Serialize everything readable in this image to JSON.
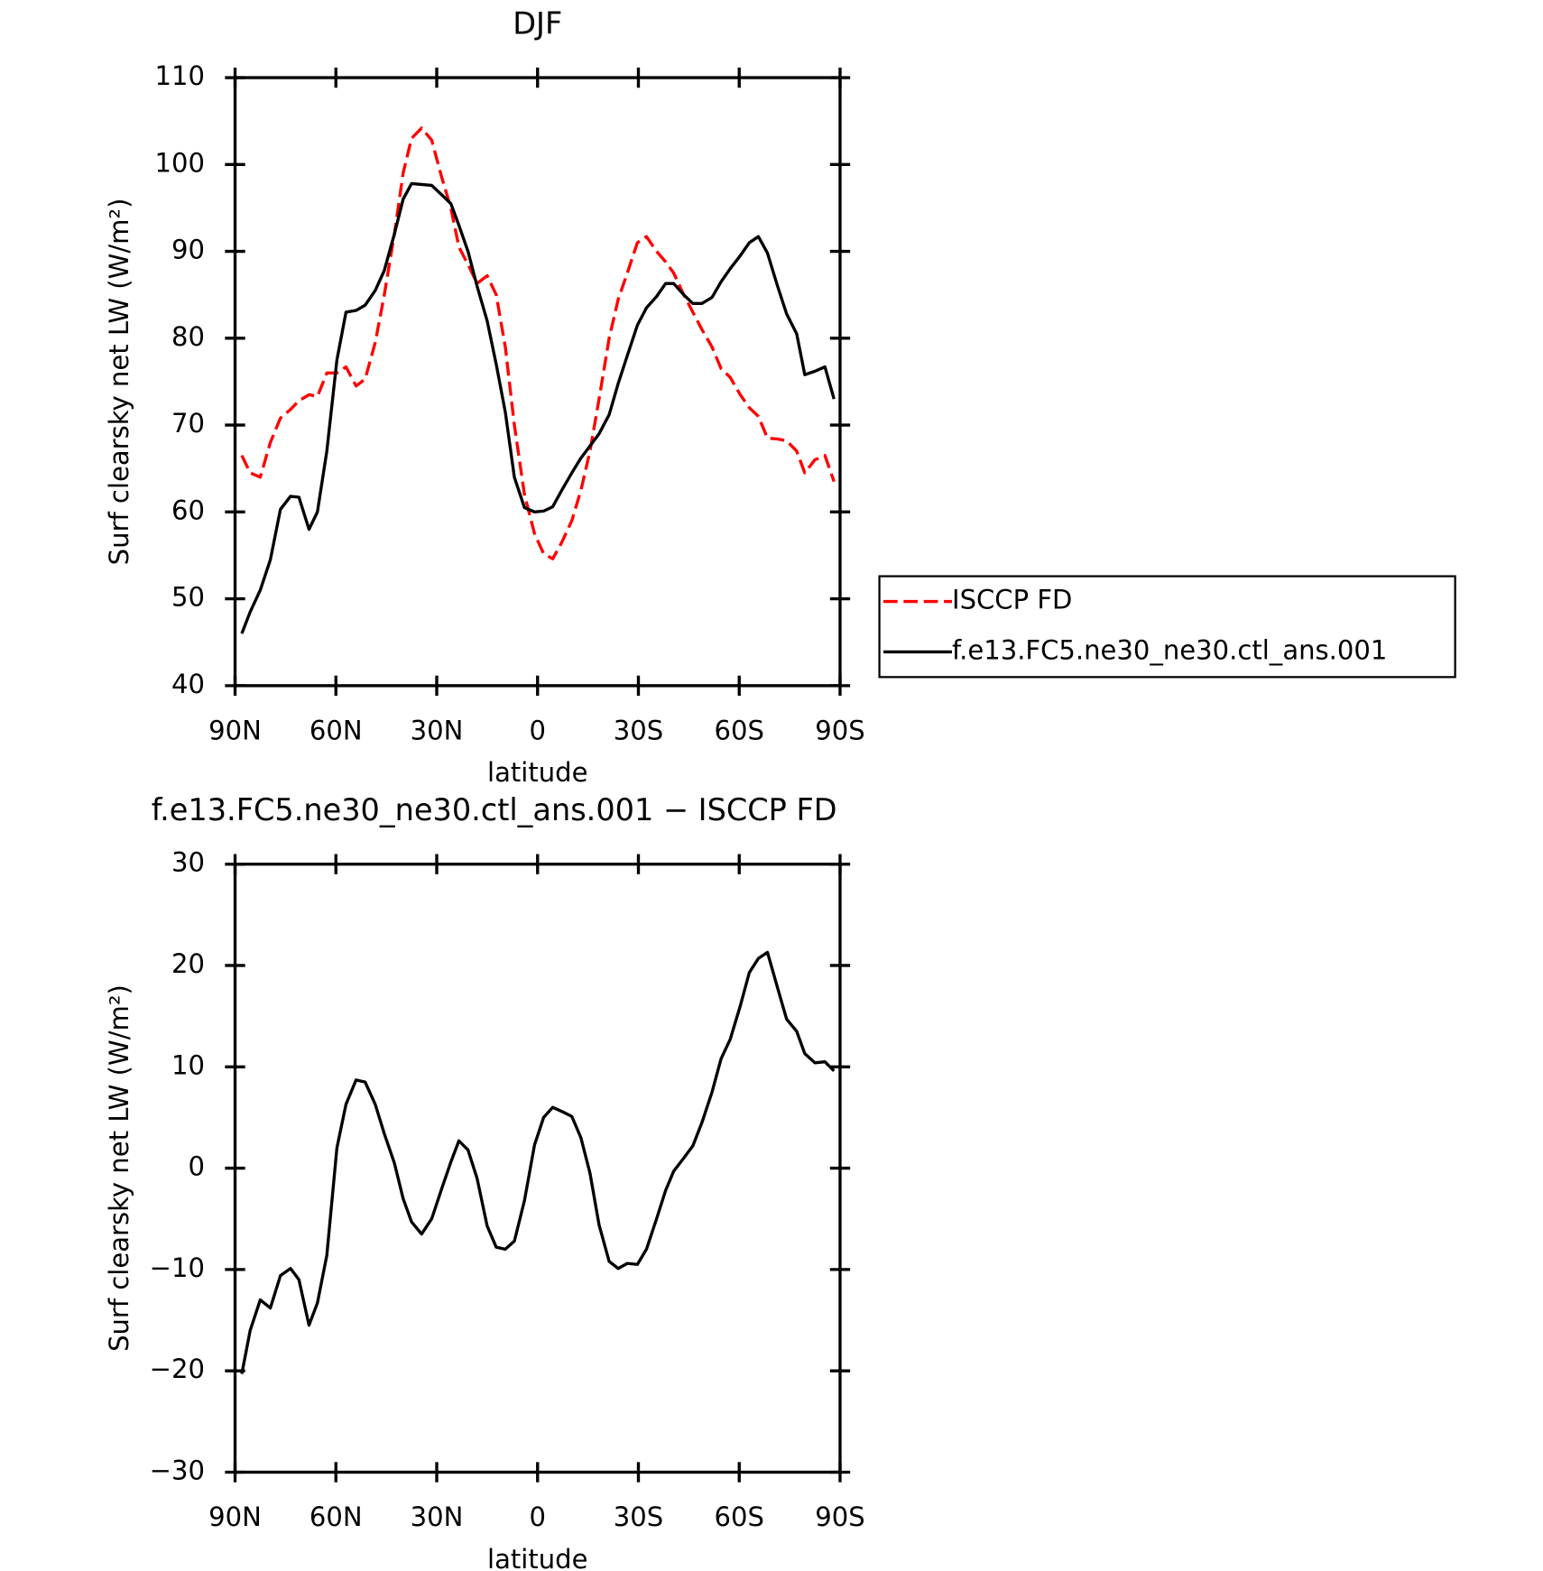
{
  "chart_data": [
    {
      "type": "line",
      "title": "DJF",
      "xlabel": "latitude",
      "ylabel": "Surf clearsky net LW (W/m²)",
      "x": [
        88,
        85.5,
        82.5,
        79.5,
        76.5,
        73.5,
        71,
        68,
        65.5,
        62.7,
        59.7,
        57,
        54,
        51.3,
        48.3,
        45.6,
        42.6,
        40,
        37.5,
        34.5,
        31.5,
        28.5,
        25.8,
        23.4,
        20.7,
        18,
        15,
        12.3,
        9.6,
        6.9,
        3.9,
        0.9,
        -1.8,
        -4.5,
        -7.2,
        -10.2,
        -12.9,
        -15.6,
        -18.3,
        -21.3,
        -24,
        -26.7,
        -29.7,
        -32.4,
        -35.4,
        -38.1,
        -40.5,
        -43.5,
        -46.2,
        -48.9,
        -51.9,
        -54.6,
        -57.3,
        -60.3,
        -63,
        -65.7,
        -68.4,
        -71.4,
        -74.1,
        -77.1,
        -79.5,
        -82.5,
        -85.5,
        -88.2
      ],
      "series": [
        {
          "name": "ISCCP FD",
          "color": "#ff0000",
          "dash": true,
          "values": [
            66.5,
            64.5,
            64,
            68,
            70.8,
            71.8,
            72.8,
            73.5,
            73.3,
            76,
            76,
            76.7,
            74.5,
            75.3,
            79.5,
            85,
            92,
            99,
            103,
            104.2,
            102.8,
            98.5,
            95,
            90.5,
            88.5,
            86.3,
            87.2,
            85,
            79,
            70,
            62,
            57.5,
            55.2,
            54.6,
            56.5,
            59,
            62.5,
            67,
            73,
            80,
            84.5,
            87.5,
            91,
            91.7,
            90,
            88.8,
            87.5,
            85,
            83,
            81,
            79,
            76.5,
            75.5,
            73.5,
            72,
            71,
            68.5,
            68.4,
            68.2,
            67,
            64.5,
            66,
            66.5,
            63.5
          ]
        },
        {
          "name": "f.e13.FC5.ne30_ne30.ctl_ans.001",
          "color": "#000000",
          "dash": false,
          "values": [
            46,
            48.5,
            51,
            54.5,
            60.3,
            61.8,
            61.7,
            58,
            60,
            67,
            77.5,
            83,
            83.2,
            83.8,
            85.5,
            87.8,
            92,
            96,
            97.8,
            97.7,
            97.6,
            96.5,
            95.5,
            93,
            90,
            86,
            82,
            77,
            71.5,
            64,
            60.5,
            60,
            60.1,
            60.6,
            62.5,
            64.5,
            66.2,
            67.6,
            69,
            71.2,
            74.8,
            78,
            81.5,
            83.5,
            84.8,
            86.3,
            86.3,
            85,
            84,
            84,
            84.7,
            86.5,
            88,
            89.5,
            91,
            91.7,
            89.8,
            86,
            82.8,
            80.5,
            75.8,
            76.2,
            76.7,
            73
          ]
        }
      ],
      "xlim": [
        90,
        -90
      ],
      "xticks": [
        {
          "value": 90,
          "label": "90N"
        },
        {
          "value": 60,
          "label": "60N"
        },
        {
          "value": 30,
          "label": "30N"
        },
        0,
        {
          "value": -30,
          "label": "30S"
        },
        {
          "value": -60,
          "label": "60S"
        },
        {
          "value": -90,
          "label": "90S"
        }
      ],
      "ylim": [
        40,
        110
      ],
      "yticks": [
        40,
        50,
        60,
        70,
        80,
        90,
        100,
        110
      ],
      "legend": "right"
    },
    {
      "type": "line",
      "title": "f.e13.FC5.ne30_ne30.ctl_ans.001 − ISCCP FD",
      "xlabel": "latitude",
      "ylabel": "Surf clearsky net LW (W/m²)",
      "x": [
        88,
        85.5,
        82.5,
        79.5,
        76.5,
        73.5,
        71,
        68,
        65.5,
        62.7,
        59.7,
        57,
        54,
        51.3,
        48.3,
        45.6,
        42.6,
        40,
        37.5,
        34.5,
        31.5,
        28.5,
        25.8,
        23.4,
        20.7,
        18,
        15,
        12.3,
        9.6,
        6.9,
        3.9,
        0.9,
        -1.8,
        -4.5,
        -7.2,
        -10.2,
        -12.9,
        -15.6,
        -18.3,
        -21.3,
        -24,
        -26.7,
        -29.7,
        -32.4,
        -35.4,
        -38.1,
        -40.5,
        -43.5,
        -46.2,
        -48.9,
        -51.9,
        -54.6,
        -57.3,
        -60.3,
        -63,
        -65.7,
        -68.4,
        -71.4,
        -74.1,
        -77.1,
        -79.5,
        -82.5,
        -85.5,
        -88.2
      ],
      "series": [
        {
          "color": "#000000",
          "dash": false,
          "values": [
            -20.3,
            -16,
            -13,
            -13.8,
            -10.6,
            -9.9,
            -11,
            -15.5,
            -13.3,
            -8.6,
            2,
            6.3,
            8.7,
            8.5,
            6.3,
            3.4,
            0.5,
            -3,
            -5.3,
            -6.5,
            -5,
            -2,
            0.6,
            2.7,
            1.8,
            -1,
            -5.7,
            -7.8,
            -8,
            -7.2,
            -3.2,
            2.3,
            5,
            6,
            5.6,
            5.1,
            3,
            -0.5,
            -5.6,
            -9.2,
            -9.9,
            -9.4,
            -9.5,
            -8,
            -5,
            -2.2,
            -0.3,
            1,
            2.2,
            4.5,
            7.5,
            10.8,
            12.7,
            16,
            19.3,
            20.7,
            21.3,
            17.8,
            14.7,
            13.5,
            11.3,
            10.4,
            10.5,
            9.6
          ]
        }
      ],
      "xlim": [
        90,
        -90
      ],
      "xticks": [
        {
          "value": 90,
          "label": "90N"
        },
        {
          "value": 60,
          "label": "60N"
        },
        {
          "value": 30,
          "label": "30N"
        },
        0,
        {
          "value": -30,
          "label": "30S"
        },
        {
          "value": -60,
          "label": "60S"
        },
        {
          "value": -90,
          "label": "90S"
        }
      ],
      "ylim": [
        -30,
        30
      ],
      "yticks": [
        {
          "value": -30,
          "label": "−30"
        },
        {
          "value": -20,
          "label": "−20"
        },
        {
          "value": -10,
          "label": "−10"
        },
        0,
        10,
        20,
        30
      ]
    }
  ]
}
